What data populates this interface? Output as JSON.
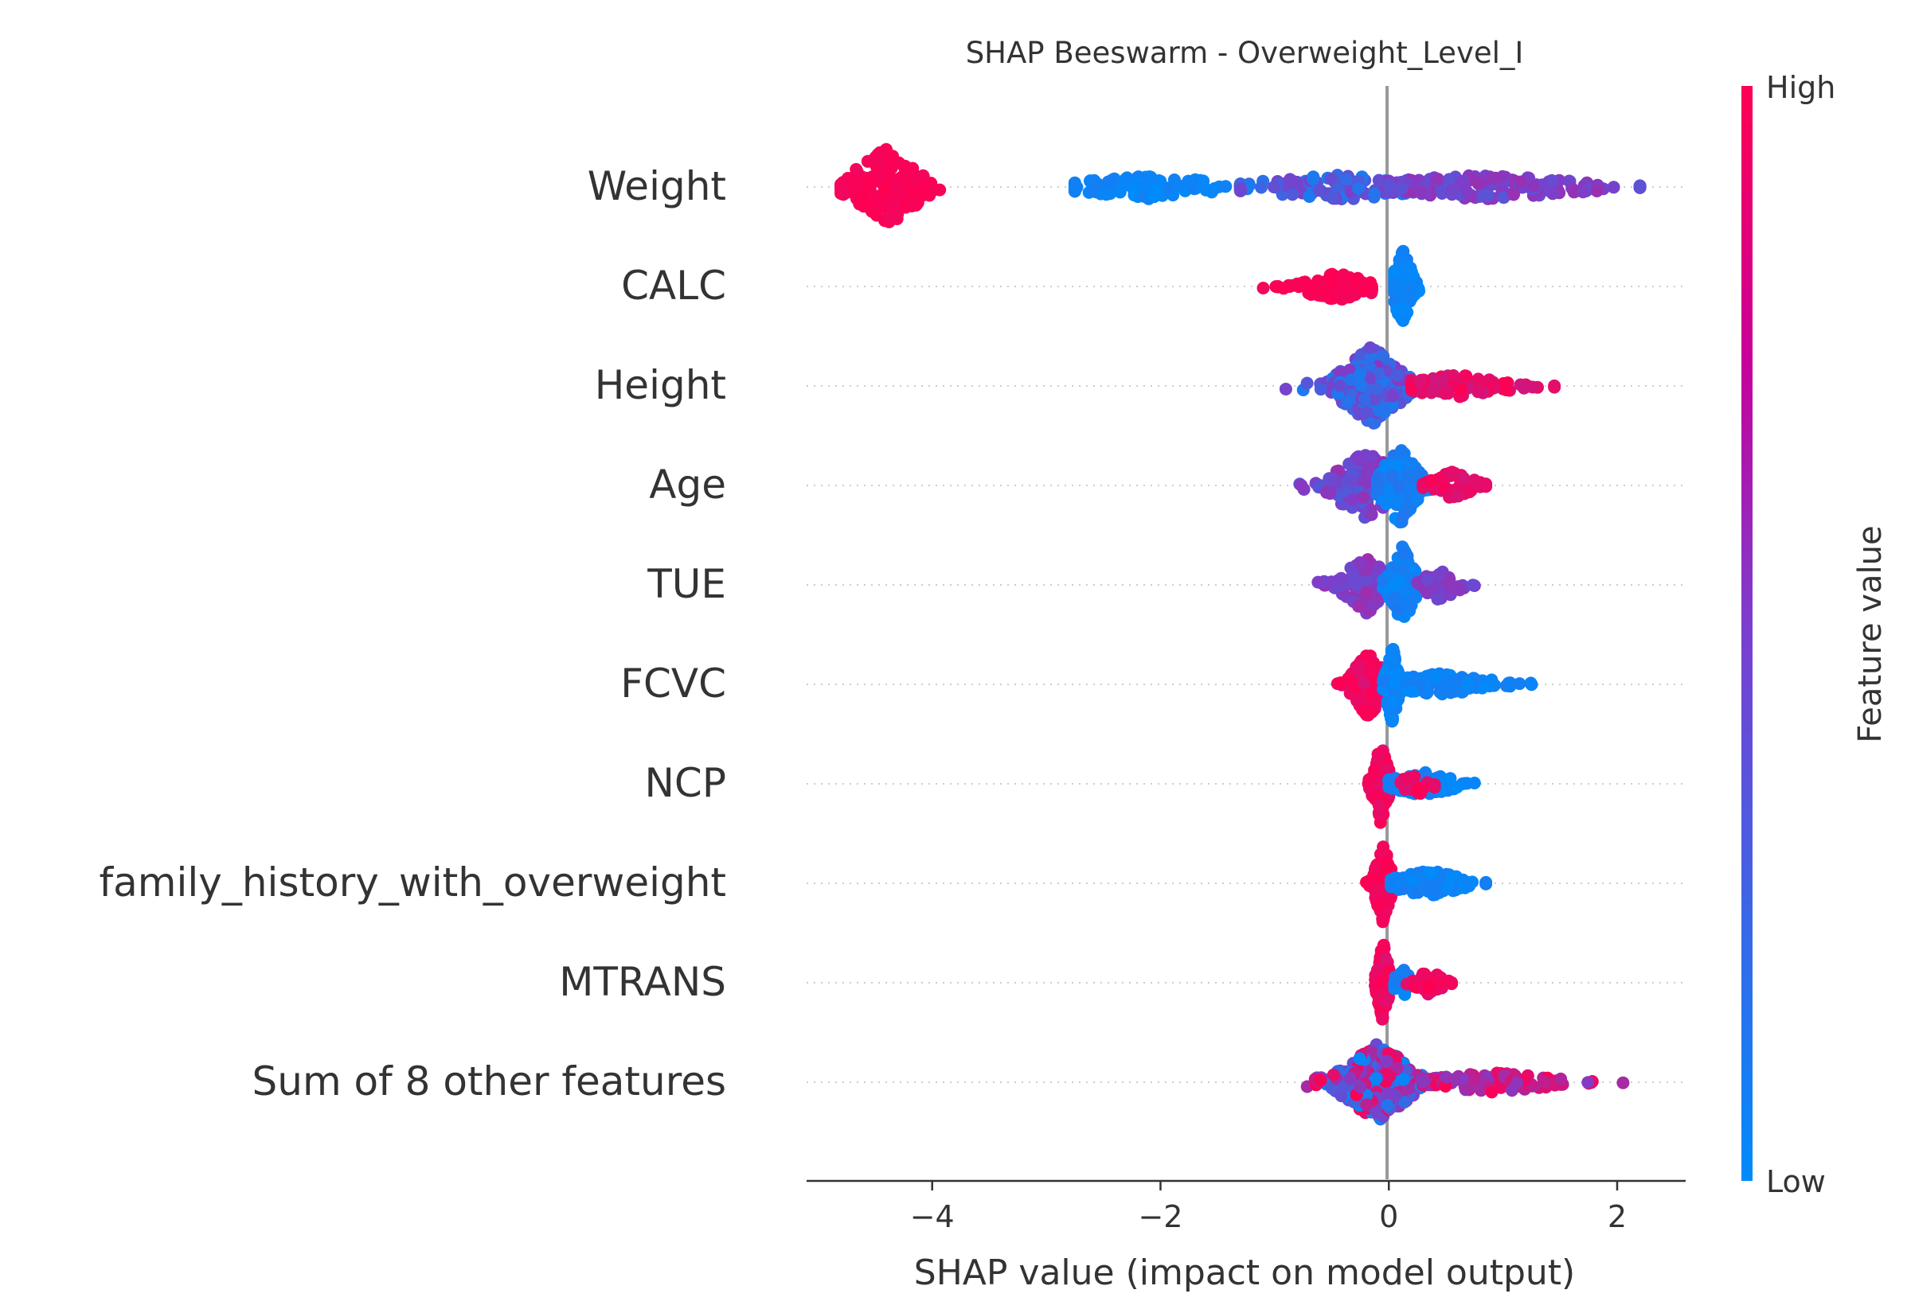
{
  "chart_data": {
    "type": "scatter",
    "subtype": "beeswarm",
    "title": "SHAP Beeswarm - Overweight_Level_I",
    "xlabel": "SHAP value (impact on model output)",
    "ylabel": "",
    "xlim": [
      -5.1,
      2.6
    ],
    "xticks": [
      -4,
      -2,
      0,
      2
    ],
    "xtick_labels": [
      "−4",
      "−2",
      "0",
      "2"
    ],
    "zero_line": 0,
    "grid": false,
    "colorbar": {
      "label": "Feature value",
      "high_label": "High",
      "low_label": "Low",
      "low_color": "#008bfb",
      "high_color": "#ff0052",
      "placement": "right"
    },
    "features": [
      {
        "name": "Weight",
        "clusters": [
          {
            "range": [
              -4.8,
              -3.6
            ],
            "center": -4.4,
            "spread": 0.22,
            "height": 1.0,
            "count": 180,
            "color": [
              0.95,
              1.0
            ]
          },
          {
            "range": [
              -2.75,
              -1.3
            ],
            "center": -2.1,
            "spread": 0.5,
            "height": 0.3,
            "count": 120,
            "color": [
              0.0,
              0.08
            ]
          },
          {
            "range": [
              -1.3,
              0.5
            ],
            "center": -0.4,
            "spread": 0.6,
            "height": 0.32,
            "count": 130,
            "color": [
              0.1,
              0.5
            ]
          },
          {
            "range": [
              0.0,
              2.2
            ],
            "center": 0.8,
            "spread": 0.7,
            "height": 0.32,
            "count": 160,
            "color": [
              0.35,
              0.6
            ]
          }
        ]
      },
      {
        "name": "CALC",
        "clusters": [
          {
            "range": [
              -1.1,
              -0.15
            ],
            "center": -0.45,
            "spread": 0.25,
            "height": 0.35,
            "count": 110,
            "color": [
              0.95,
              1.0
            ]
          },
          {
            "range": [
              0.05,
              0.38
            ],
            "center": 0.12,
            "spread": 0.06,
            "height": 1.0,
            "count": 150,
            "color": [
              0.0,
              0.08
            ]
          }
        ]
      },
      {
        "name": "Height",
        "clusters": [
          {
            "range": [
              -0.95,
              0.45
            ],
            "center": -0.15,
            "spread": 0.2,
            "height": 1.0,
            "count": 230,
            "color": [
              0.1,
              0.55
            ]
          },
          {
            "range": [
              0.2,
              1.45
            ],
            "center": 0.6,
            "spread": 0.35,
            "height": 0.3,
            "count": 90,
            "color": [
              0.8,
              1.0
            ]
          }
        ]
      },
      {
        "name": "Age",
        "clusters": [
          {
            "range": [
              -0.95,
              -0.05
            ],
            "center": -0.2,
            "spread": 0.22,
            "height": 0.85,
            "count": 150,
            "color": [
              0.3,
              0.6
            ]
          },
          {
            "range": [
              -0.1,
              0.45
            ],
            "center": 0.1,
            "spread": 0.12,
            "height": 1.0,
            "count": 150,
            "color": [
              0.0,
              0.15
            ]
          },
          {
            "range": [
              0.3,
              0.85
            ],
            "center": 0.55,
            "spread": 0.15,
            "height": 0.35,
            "count": 60,
            "color": [
              0.85,
              1.0
            ]
          }
        ]
      },
      {
        "name": "TUE",
        "clusters": [
          {
            "range": [
              -0.62,
              0.0
            ],
            "center": -0.2,
            "spread": 0.15,
            "height": 0.75,
            "count": 130,
            "color": [
              0.4,
              0.65
            ]
          },
          {
            "range": [
              -0.05,
              0.4
            ],
            "center": 0.12,
            "spread": 0.08,
            "height": 1.0,
            "count": 160,
            "color": [
              0.0,
              0.12
            ]
          },
          {
            "range": [
              0.25,
              0.75
            ],
            "center": 0.45,
            "spread": 0.12,
            "height": 0.4,
            "count": 50,
            "color": [
              0.4,
              0.6
            ]
          }
        ]
      },
      {
        "name": "FCVC",
        "clusters": [
          {
            "range": [
              -0.45,
              0.0
            ],
            "center": -0.18,
            "spread": 0.1,
            "height": 0.85,
            "count": 150,
            "color": [
              0.85,
              1.0
            ]
          },
          {
            "range": [
              -0.05,
              0.25
            ],
            "center": 0.03,
            "spread": 0.04,
            "height": 1.0,
            "count": 140,
            "color": [
              0.0,
              0.1
            ]
          },
          {
            "range": [
              0.05,
              1.25
            ],
            "center": 0.45,
            "spread": 0.35,
            "height": 0.28,
            "count": 110,
            "color": [
              0.0,
              0.1
            ]
          }
        ]
      },
      {
        "name": "NCP",
        "clusters": [
          {
            "range": [
              -0.32,
              0.05
            ],
            "center": -0.07,
            "spread": 0.05,
            "height": 1.0,
            "count": 160,
            "color": [
              0.85,
              1.0
            ]
          },
          {
            "range": [
              0.0,
              0.75
            ],
            "center": 0.3,
            "spread": 0.22,
            "height": 0.3,
            "count": 90,
            "color": [
              0.0,
              0.12
            ]
          },
          {
            "range": [
              0.1,
              0.4
            ],
            "center": 0.25,
            "spread": 0.1,
            "height": 0.3,
            "count": 20,
            "color": [
              0.85,
              1.0
            ]
          }
        ]
      },
      {
        "name": "family_history_with_overweight",
        "clusters": [
          {
            "range": [
              -0.35,
              0.02
            ],
            "center": -0.05,
            "spread": 0.05,
            "height": 1.0,
            "count": 170,
            "color": [
              0.92,
              1.0
            ]
          },
          {
            "range": [
              0.02,
              0.85
            ],
            "center": 0.35,
            "spread": 0.22,
            "height": 0.35,
            "count": 110,
            "color": [
              0.0,
              0.1
            ]
          }
        ]
      },
      {
        "name": "MTRANS",
        "clusters": [
          {
            "range": [
              -0.2,
              0.03
            ],
            "center": -0.05,
            "spread": 0.04,
            "height": 1.0,
            "count": 140,
            "color": [
              0.85,
              1.0
            ]
          },
          {
            "range": [
              0.05,
              0.28
            ],
            "center": 0.12,
            "spread": 0.06,
            "height": 0.35,
            "count": 40,
            "color": [
              0.0,
              0.15
            ]
          },
          {
            "range": [
              0.15,
              0.55
            ],
            "center": 0.35,
            "spread": 0.1,
            "height": 0.3,
            "count": 40,
            "color": [
              0.88,
              1.0
            ]
          }
        ]
      },
      {
        "name": "Sum of 8 other features",
        "clusters": [
          {
            "range": [
              -0.9,
              0.55
            ],
            "center": -0.1,
            "spread": 0.22,
            "height": 1.0,
            "count": 300,
            "color": [
              0.0,
              1.0
            ]
          },
          {
            "range": [
              0.3,
              2.2
            ],
            "center": 0.9,
            "spread": 0.45,
            "height": 0.25,
            "count": 110,
            "color": [
              0.5,
              1.0
            ]
          }
        ]
      }
    ]
  }
}
